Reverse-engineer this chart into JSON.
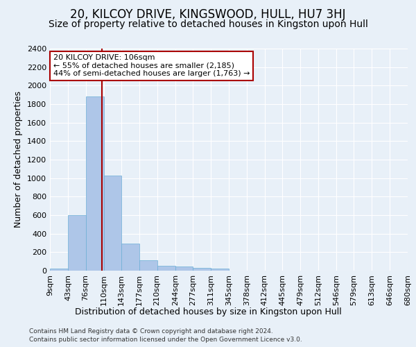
{
  "title": "20, KILCOY DRIVE, KINGSWOOD, HULL, HU7 3HJ",
  "subtitle": "Size of property relative to detached houses in Kingston upon Hull",
  "xlabel_bottom": "Distribution of detached houses by size in Kingston upon Hull",
  "ylabel": "Number of detached properties",
  "footer_line1": "Contains HM Land Registry data © Crown copyright and database right 2024.",
  "footer_line2": "Contains public sector information licensed under the Open Government Licence v3.0.",
  "bin_edges": [
    9,
    43,
    76,
    110,
    143,
    177,
    210,
    244,
    277,
    311,
    345,
    378,
    412,
    445,
    479,
    512,
    546,
    579,
    613,
    646,
    680
  ],
  "bin_labels": [
    "9sqm",
    "43sqm",
    "76sqm",
    "110sqm",
    "143sqm",
    "177sqm",
    "210sqm",
    "244sqm",
    "277sqm",
    "311sqm",
    "345sqm",
    "378sqm",
    "412sqm",
    "445sqm",
    "479sqm",
    "512sqm",
    "546sqm",
    "579sqm",
    "613sqm",
    "646sqm",
    "680sqm"
  ],
  "bar_heights": [
    20,
    600,
    1880,
    1030,
    295,
    110,
    50,
    45,
    30,
    20,
    0,
    0,
    0,
    0,
    0,
    0,
    0,
    0,
    0,
    0
  ],
  "bar_color": "#aec6e8",
  "bar_edge_color": "#6aaed6",
  "property_size": 106,
  "vline_color": "#aa0000",
  "annotation_line1": "20 KILCOY DRIVE: 106sqm",
  "annotation_line2": "← 55% of detached houses are smaller (2,185)",
  "annotation_line3": "44% of semi-detached houses are larger (1,763) →",
  "annotation_box_color": "#ffffff",
  "annotation_box_edge": "#aa0000",
  "ylim": [
    0,
    2400
  ],
  "yticks": [
    0,
    200,
    400,
    600,
    800,
    1000,
    1200,
    1400,
    1600,
    1800,
    2000,
    2200,
    2400
  ],
  "background_color": "#e8f0f8",
  "grid_color": "#ffffff",
  "title_fontsize": 12,
  "subtitle_fontsize": 10,
  "axis_label_fontsize": 9,
  "tick_fontsize": 8,
  "footer_fontsize": 6.5,
  "annotation_fontsize": 8
}
